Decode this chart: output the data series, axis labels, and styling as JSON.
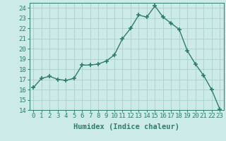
{
  "x": [
    0,
    1,
    2,
    3,
    4,
    5,
    6,
    7,
    8,
    9,
    10,
    11,
    12,
    13,
    14,
    15,
    16,
    17,
    18,
    19,
    20,
    21,
    22,
    23
  ],
  "y": [
    16.2,
    17.1,
    17.3,
    17.0,
    16.9,
    17.1,
    18.4,
    18.4,
    18.5,
    18.8,
    19.4,
    21.0,
    22.0,
    23.3,
    23.1,
    24.2,
    23.1,
    22.5,
    21.9,
    19.8,
    18.5,
    17.4,
    16.0,
    14.1
  ],
  "line_color": "#2d7d6f",
  "marker": "+",
  "marker_size": 4,
  "marker_lw": 1.2,
  "bg_color": "#cceae8",
  "grid_color": "#aacfcc",
  "xlabel": "Humidex (Indice chaleur)",
  "ylim": [
    14,
    24.5
  ],
  "yticks": [
    14,
    15,
    16,
    17,
    18,
    19,
    20,
    21,
    22,
    23,
    24
  ],
  "xticks": [
    0,
    1,
    2,
    3,
    4,
    5,
    6,
    7,
    8,
    9,
    10,
    11,
    12,
    13,
    14,
    15,
    16,
    17,
    18,
    19,
    20,
    21,
    22,
    23
  ],
  "tick_color": "#2d7d6f",
  "label_color": "#2d7d6f",
  "font_size": 6.5,
  "xlabel_fontsize": 7.5,
  "line_width": 1.0
}
